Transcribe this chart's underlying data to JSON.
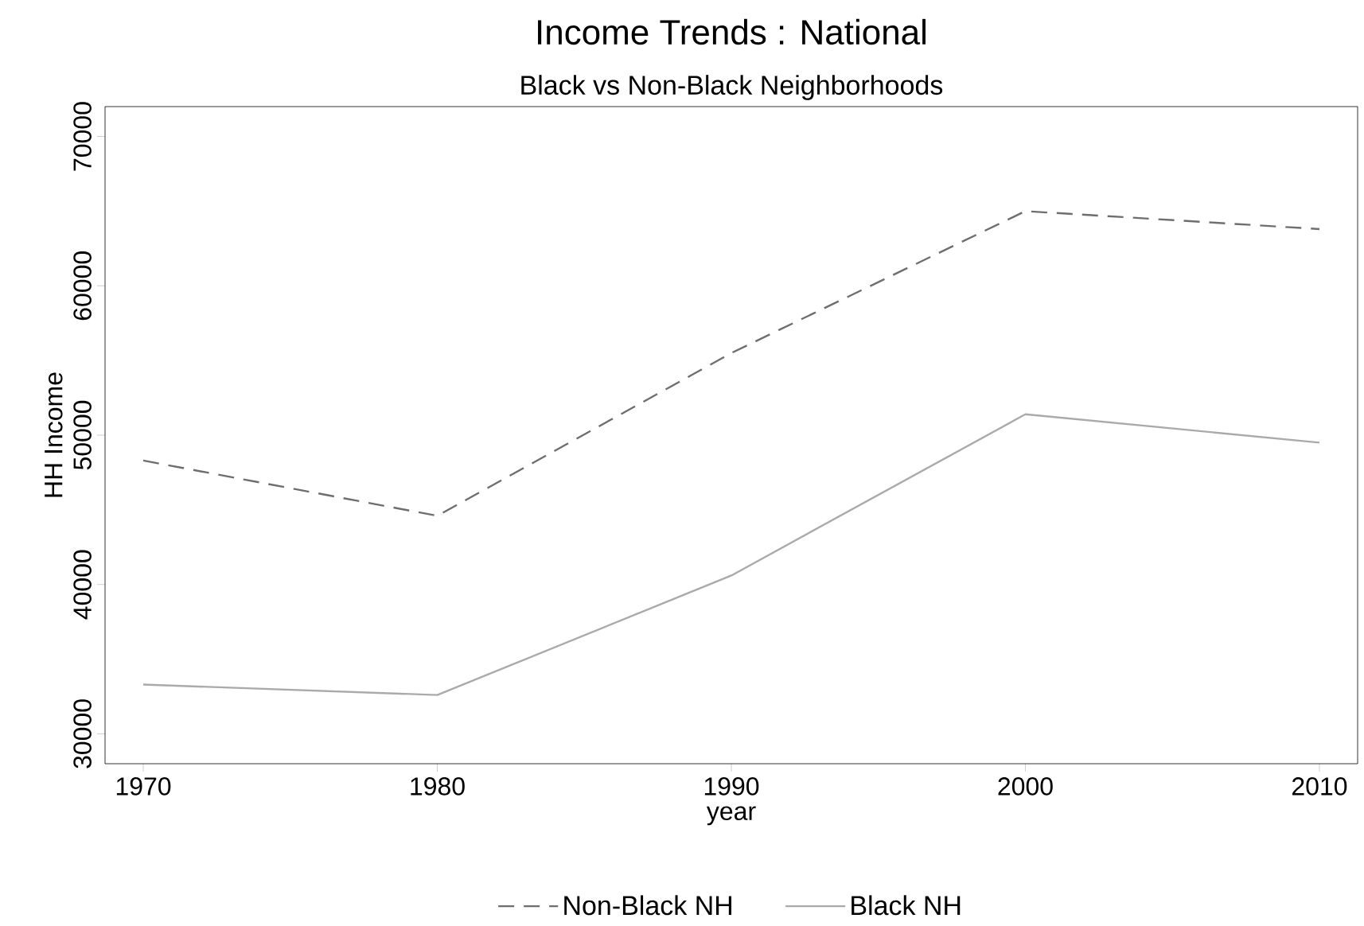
{
  "chart_data": {
    "type": "line",
    "title": "Income Trends : National",
    "subtitle": "Black vs Non-Black Neighborhoods",
    "xlabel": "year",
    "ylabel": "HH Income",
    "x": [
      1970,
      1980,
      1990,
      2000,
      2010
    ],
    "series": [
      {
        "name": "Non-Black NH",
        "color": "#6e6e6e",
        "line_style": "dashed",
        "values": [
          48300,
          44600,
          55500,
          65000,
          63800
        ]
      },
      {
        "name": "Black NH",
        "color": "#aaaaaa",
        "line_style": "solid",
        "values": [
          33300,
          32600,
          40600,
          51400,
          49500
        ]
      }
    ],
    "xlim": [
      1968.7,
      2011.3
    ],
    "ylim": [
      28000,
      72000
    ],
    "xticks": [
      1970,
      1980,
      1990,
      2000,
      2010
    ],
    "yticks": [
      30000,
      40000,
      50000,
      60000,
      70000
    ],
    "grid": false,
    "legend": "bottom",
    "marker": "none"
  }
}
